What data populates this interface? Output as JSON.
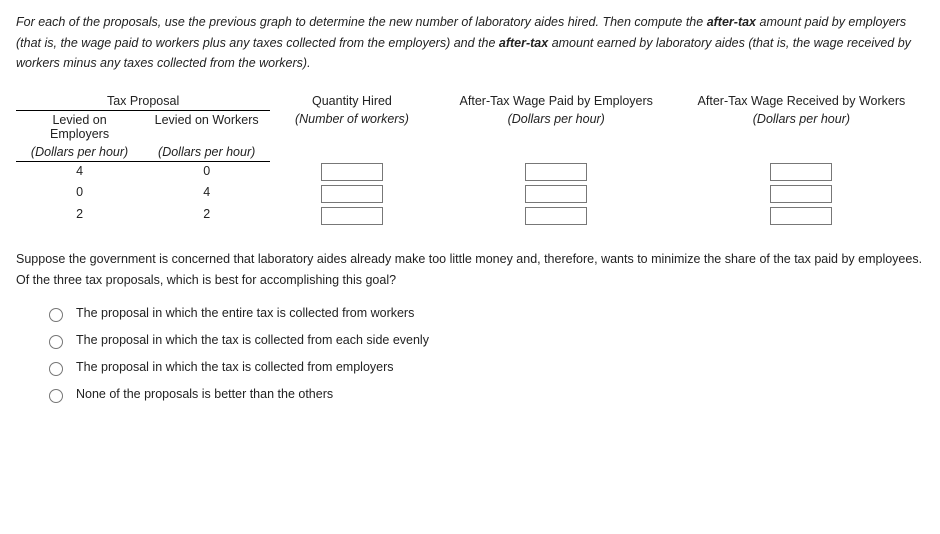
{
  "intro_html": "For each of the proposals, use the previous graph to determine the new number of laboratory aides hired. Then compute the <b>after-tax</b> amount paid by employers (that is, the wage paid to workers plus any taxes collected from the employers) and the <b>after-tax</b> amount earned by laboratory aides (that is, the wage received by workers minus any taxes collected from the workers).",
  "table": {
    "group_header": "Tax Proposal",
    "col_qty": "Quantity Hired",
    "col_qty_sub": "(Number of workers)",
    "col_paid": "After-Tax Wage Paid by Employers",
    "col_paid_sub": "(Dollars per hour)",
    "col_recv": "After-Tax Wage Received by Workers",
    "col_recv_sub": "(Dollars per hour)",
    "sub_emp": "Levied on Employers",
    "sub_emp_unit": "(Dollars per hour)",
    "sub_wrk": "Levied on Workers",
    "sub_wrk_unit": "(Dollars per hour)",
    "rows": [
      {
        "emp": "4",
        "wrk": "0"
      },
      {
        "emp": "0",
        "wrk": "4"
      },
      {
        "emp": "2",
        "wrk": "2"
      }
    ]
  },
  "question": "Suppose the government is concerned that laboratory aides already make too little money and, therefore, wants to minimize the share of the tax paid by employees. Of the three tax proposals, which is best for accomplishing this goal?",
  "options": [
    "The proposal in which the entire tax is collected from workers",
    "The proposal in which the tax is collected from each side evenly",
    "The proposal in which the tax is collected from employers",
    "None of the proposals is better than the others"
  ]
}
